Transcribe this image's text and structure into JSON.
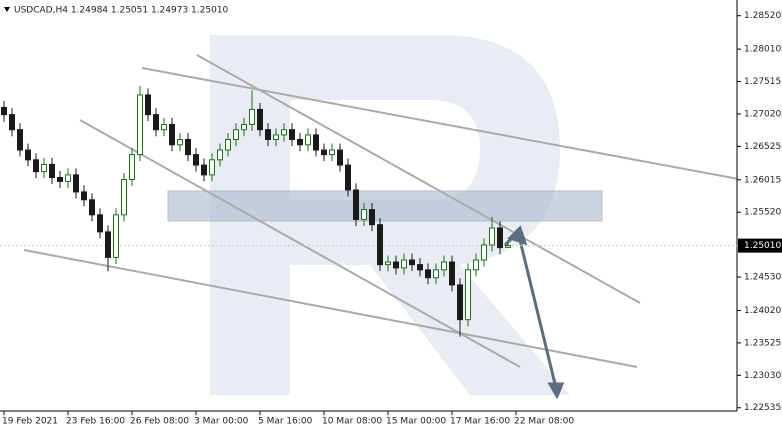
{
  "chart_data": {
    "type": "candlestick",
    "title": "USDCAD,H4  1.24984 1.25051 1.24973 1.25010",
    "x_labels": [
      "19 Feb 2021",
      "23 Feb 16:00",
      "26 Feb 08:00",
      "3 Mar 00:00",
      "5 Mar 16:00",
      "10 Mar 08:00",
      "15 Mar 00:00",
      "17 Mar 16:00",
      "22 Mar 08:00"
    ],
    "open": [
      1.2712,
      1.2701,
      1.2678,
      1.2647,
      1.2632,
      1.2614,
      1.2625,
      1.2605,
      1.2599,
      1.2609,
      1.2583,
      1.2571,
      1.2548,
      1.2522,
      1.2483,
      1.2548,
      1.2602,
      1.264,
      1.2731,
      1.2701,
      1.2678,
      1.2686,
      1.2655,
      1.2663,
      1.264,
      1.2624,
      1.2609,
      1.2632,
      1.2647,
      1.2663,
      1.2678,
      1.2686,
      1.2709,
      1.2678,
      1.2663,
      1.267,
      1.2678,
      1.2663,
      1.2655,
      1.267,
      1.2647,
      1.264,
      1.2647,
      1.2624,
      1.2586,
      1.2541,
      1.2556,
      1.2533,
      1.2472,
      1.2476,
      1.2467,
      1.2479,
      1.2472,
      1.2464,
      1.2452,
      1.2464,
      1.2476,
      1.2441,
      1.2388,
      1.2464,
      1.2479,
      1.2502,
      1.2528,
      1.24984
    ],
    "high": [
      1.2722,
      1.2711,
      1.2688,
      1.2657,
      1.2642,
      1.2635,
      1.2635,
      1.2615,
      1.2619,
      1.2619,
      1.2593,
      1.2581,
      1.2558,
      1.2532,
      1.2558,
      1.2612,
      1.265,
      1.2745,
      1.2741,
      1.2711,
      1.2696,
      1.2696,
      1.2673,
      1.2673,
      1.265,
      1.2634,
      1.2642,
      1.2657,
      1.2673,
      1.2688,
      1.2696,
      1.2738,
      1.2719,
      1.2688,
      1.268,
      1.2688,
      1.2688,
      1.2673,
      1.268,
      1.268,
      1.2657,
      1.2657,
      1.2657,
      1.2634,
      1.2596,
      1.2566,
      1.2566,
      1.2543,
      1.2486,
      1.2486,
      1.2489,
      1.2489,
      1.2482,
      1.2474,
      1.2474,
      1.2486,
      1.2486,
      1.2451,
      1.2474,
      1.2489,
      1.2512,
      1.2545,
      1.2538,
      1.25051
    ],
    "low": [
      1.269,
      1.2668,
      1.2637,
      1.2622,
      1.2604,
      1.2604,
      1.2595,
      1.2589,
      1.2589,
      1.2573,
      1.2561,
      1.2538,
      1.2512,
      1.2462,
      1.2473,
      1.2538,
      1.2592,
      1.263,
      1.2691,
      1.2668,
      1.2668,
      1.2645,
      1.2645,
      1.263,
      1.2614,
      1.2599,
      1.2599,
      1.2622,
      1.2637,
      1.2653,
      1.2668,
      1.2676,
      1.2668,
      1.2653,
      1.2653,
      1.266,
      1.2653,
      1.2645,
      1.2645,
      1.2637,
      1.263,
      1.263,
      1.2614,
      1.2576,
      1.2531,
      1.2531,
      1.2523,
      1.2462,
      1.2462,
      1.2457,
      1.2457,
      1.2462,
      1.2454,
      1.2442,
      1.2442,
      1.2454,
      1.2431,
      1.2362,
      1.2378,
      1.2454,
      1.2469,
      1.2492,
      1.2488,
      1.24973
    ],
    "close": [
      1.2701,
      1.2678,
      1.2647,
      1.2632,
      1.2614,
      1.2625,
      1.2605,
      1.2599,
      1.2609,
      1.2583,
      1.2571,
      1.2548,
      1.2522,
      1.2483,
      1.2548,
      1.2602,
      1.264,
      1.2731,
      1.2701,
      1.2678,
      1.2686,
      1.2655,
      1.2663,
      1.264,
      1.2624,
      1.2609,
      1.2632,
      1.2647,
      1.2663,
      1.2678,
      1.2686,
      1.2709,
      1.2678,
      1.2663,
      1.267,
      1.2678,
      1.2663,
      1.2655,
      1.267,
      1.2647,
      1.264,
      1.2647,
      1.2624,
      1.2586,
      1.2541,
      1.2556,
      1.2533,
      1.2472,
      1.2476,
      1.2467,
      1.2479,
      1.2472,
      1.2464,
      1.2452,
      1.2464,
      1.2476,
      1.2441,
      1.2388,
      1.2464,
      1.2479,
      1.2502,
      1.2528,
      1.2498,
      1.2501
    ],
    "up_color": "#1f6f1f",
    "down_color": "#1a1a1a",
    "ylim": [
      1.2247,
      1.2876
    ],
    "yticks": [
      {
        "value": 1.2852,
        "label": "1.28520"
      },
      {
        "value": 1.2801,
        "label": "1.28010"
      },
      1.27515,
      {
        "value": 1.2702,
        "label": "1.27020"
      },
      1.26525,
      1.26015,
      {
        "value": 1.2552,
        "label": "1.25520"
      },
      {
        "value": 1.2453,
        "label": "1.24530"
      },
      {
        "value": 1.2402,
        "label": "1.24020"
      },
      1.23525,
      {
        "value": 1.2303,
        "label": "1.23030"
      },
      1.22535
    ],
    "current_price": {
      "value": 1.2501,
      "label": "1.25010"
    }
  }
}
